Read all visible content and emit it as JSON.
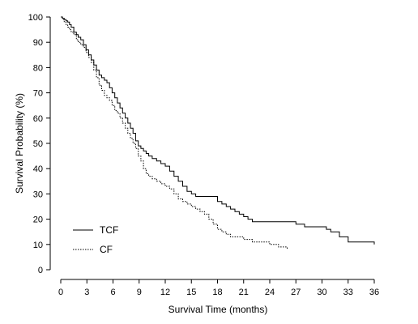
{
  "chart_data": {
    "type": "line",
    "title": "",
    "xlabel": "Survival Time (months)",
    "ylabel": "Survival Probability (%)",
    "xlim": [
      0,
      36
    ],
    "ylim": [
      0,
      100
    ],
    "xticks": [
      0,
      3,
      6,
      9,
      12,
      15,
      18,
      21,
      24,
      27,
      30,
      33,
      36
    ],
    "yticks": [
      0,
      10,
      20,
      30,
      40,
      50,
      60,
      70,
      80,
      90,
      100
    ],
    "grid": false,
    "step": true,
    "legend": {
      "position": "bottom-left"
    },
    "series": [
      {
        "name": "TCF",
        "style": "solid",
        "color": "#000000",
        "x": [
          0,
          0.2,
          0.4,
          0.6,
          0.8,
          1.0,
          1.2,
          1.5,
          1.8,
          2.0,
          2.3,
          2.6,
          2.9,
          3.2,
          3.5,
          3.8,
          4.1,
          4.4,
          4.7,
          5.0,
          5.3,
          5.6,
          5.9,
          6.2,
          6.5,
          6.8,
          7.1,
          7.4,
          7.7,
          8.0,
          8.3,
          8.6,
          8.9,
          9.2,
          9.5,
          9.8,
          10.1,
          10.5,
          11.0,
          11.5,
          12.0,
          12.5,
          13.0,
          13.5,
          14.0,
          14.5,
          15.0,
          15.5,
          16.0,
          17.0,
          18.0,
          18.5,
          19.0,
          19.5,
          20.0,
          20.5,
          21.0,
          21.5,
          22.0,
          27.0,
          28.0,
          30.5,
          31.0,
          32.0,
          33.0,
          36.0
        ],
        "y": [
          100,
          99.5,
          99,
          98.5,
          98,
          97,
          96,
          94,
          93,
          92,
          91,
          89,
          87,
          85,
          83,
          81,
          79,
          77,
          76,
          75,
          74,
          72,
          70,
          68,
          66,
          64,
          62,
          60,
          58,
          56,
          54,
          51,
          49,
          48,
          47,
          46,
          45,
          44,
          43,
          42,
          41,
          39,
          37,
          35,
          33,
          31,
          30,
          29,
          29,
          29,
          27,
          26,
          25,
          24,
          23,
          22,
          21,
          20,
          19,
          18,
          17,
          16,
          15,
          13,
          11,
          10
        ]
      },
      {
        "name": "CF",
        "style": "dotted",
        "color": "#000000",
        "x": [
          0,
          0.2,
          0.4,
          0.6,
          0.8,
          1.0,
          1.2,
          1.5,
          1.8,
          2.0,
          2.3,
          2.6,
          2.9,
          3.2,
          3.5,
          3.8,
          4.1,
          4.4,
          4.7,
          5.0,
          5.3,
          5.6,
          5.9,
          6.2,
          6.5,
          6.8,
          7.1,
          7.4,
          7.7,
          8.0,
          8.3,
          8.6,
          8.9,
          9.2,
          9.5,
          9.8,
          10.1,
          10.5,
          11.0,
          11.5,
          12.0,
          12.5,
          13.0,
          13.5,
          14.0,
          14.5,
          15.0,
          15.5,
          16.0,
          16.5,
          17.0,
          17.5,
          18.0,
          18.5,
          19.0,
          19.5,
          20.0,
          21.0,
          22.0,
          23.0,
          24.0,
          25.0,
          26.0
        ],
        "y": [
          100,
          99,
          98,
          97,
          96,
          95,
          94,
          93,
          91,
          90,
          89,
          88,
          86,
          84,
          82,
          79,
          76,
          73,
          71,
          69,
          68,
          67,
          65,
          63,
          62,
          60,
          58,
          56,
          54,
          52,
          50,
          48,
          45,
          43,
          40,
          38,
          37,
          36,
          35,
          34,
          33,
          32,
          30,
          28,
          27,
          26,
          25,
          24,
          23,
          22,
          20,
          18,
          16,
          15,
          14,
          13,
          13,
          12,
          11,
          11,
          10,
          9,
          8
        ]
      }
    ]
  }
}
